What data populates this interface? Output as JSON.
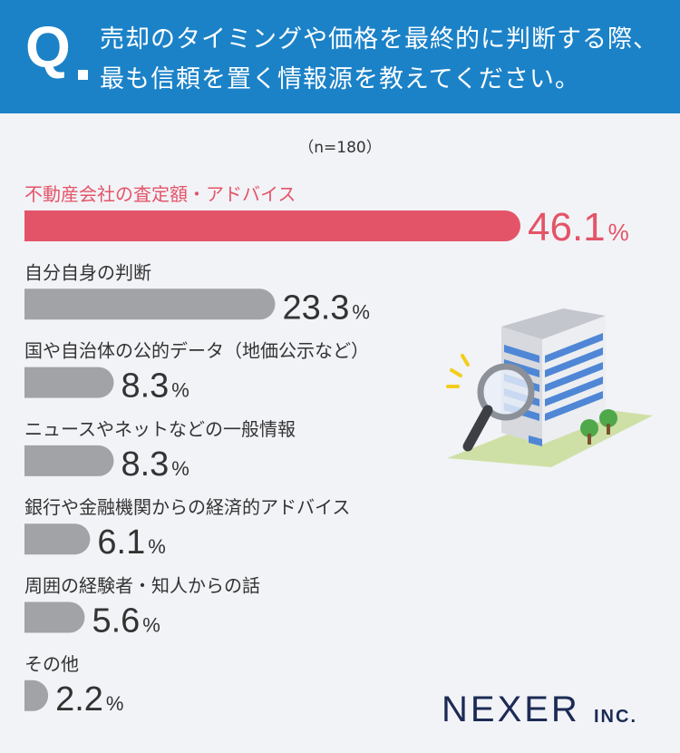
{
  "header": {
    "q_label": "Q",
    "question": "売却のタイミングや価格を最終的に判断する際、最も信頼を置く情報源を教えてください。"
  },
  "sample_size": "（n=180）",
  "chart_data": {
    "type": "bar",
    "orientation": "horizontal",
    "unit": "%",
    "xlim": [
      0,
      46.1
    ],
    "categories": [
      "不動産会社の査定額・アドバイス",
      "自分自身の判断",
      "国や自治体の公的データ（地価公示など）",
      "ニュースやネットなどの一般情報",
      "銀行や金融機関からの経済的アドバイス",
      "周囲の経験者・知人からの話",
      "その他"
    ],
    "values": [
      46.1,
      23.3,
      8.3,
      8.3,
      6.1,
      5.6,
      2.2
    ],
    "value_labels": [
      "46.1",
      "23.3",
      "8.3",
      "8.3",
      "6.1",
      "5.6",
      "2.2"
    ],
    "highlight_index": 0
  },
  "colors": {
    "header_bg": "#1b82c8",
    "highlight": "#e45468",
    "bar_default": "#a2a3a7",
    "background": "#f2f3f7",
    "text": "#333333",
    "logo": "#1c2b55"
  },
  "logo": {
    "name": "NEXER",
    "suffix": "INC."
  }
}
